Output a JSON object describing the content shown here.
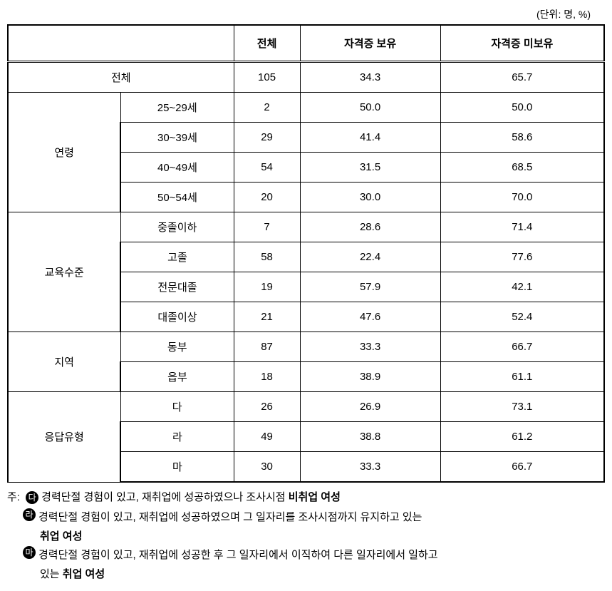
{
  "unit_label": "(단위: 명, %)",
  "headers": {
    "col1": "",
    "col2": "전체",
    "col3": "자격증 보유",
    "col4": "자격증 미보유"
  },
  "total_row": {
    "label": "전체",
    "c1": "105",
    "c2": "34.3",
    "c3": "65.7"
  },
  "groups": {
    "age": {
      "label": "연령",
      "rows": [
        {
          "label": "25~29세",
          "c1": "2",
          "c2": "50.0",
          "c3": "50.0"
        },
        {
          "label": "30~39세",
          "c1": "29",
          "c2": "41.4",
          "c3": "58.6"
        },
        {
          "label": "40~49세",
          "c1": "54",
          "c2": "31.5",
          "c3": "68.5"
        },
        {
          "label": "50~54세",
          "c1": "20",
          "c2": "30.0",
          "c3": "70.0"
        }
      ]
    },
    "edu": {
      "label": "교육수준",
      "rows": [
        {
          "label": "중졸이하",
          "c1": "7",
          "c2": "28.6",
          "c3": "71.4"
        },
        {
          "label": "고졸",
          "c1": "58",
          "c2": "22.4",
          "c3": "77.6"
        },
        {
          "label": "전문대졸",
          "c1": "19",
          "c2": "57.9",
          "c3": "42.1"
        },
        {
          "label": "대졸이상",
          "c1": "21",
          "c2": "47.6",
          "c3": "52.4"
        }
      ]
    },
    "region": {
      "label": "지역",
      "rows": [
        {
          "label": "동부",
          "c1": "87",
          "c2": "33.3",
          "c3": "66.7"
        },
        {
          "label": "읍부",
          "c1": "18",
          "c2": "38.9",
          "c3": "61.1"
        }
      ]
    },
    "resp": {
      "label": "응답유형",
      "rows": [
        {
          "label": "다",
          "c1": "26",
          "c2": "26.9",
          "c3": "73.1"
        },
        {
          "label": "라",
          "c1": "49",
          "c2": "38.8",
          "c3": "61.2"
        },
        {
          "label": "마",
          "c1": "30",
          "c2": "33.3",
          "c3": "66.7"
        }
      ]
    }
  },
  "notes": {
    "prefix": "주:",
    "items": [
      {
        "marker": "다",
        "text_pre": "경력단절 경험이 있고, 재취업에 성공하였으나 조사시점 ",
        "bold": "비취업 여성",
        "text_post": ""
      },
      {
        "marker": "라",
        "text_pre": "경력단절 경험이 있고, 재취업에 성공하였으며 그 일자리를 조사시점까지 유지하고 있는",
        "bold": "취업 여성",
        "text_post": ""
      },
      {
        "marker": "마",
        "text_pre": "경력단절 경험이 있고, 재취업에 성공한 후 그 일자리에서 이직하여 다른 일자리에서 일하고",
        "bold_prefix": "있는 ",
        "bold": "취업 여성",
        "text_post": ""
      }
    ]
  }
}
